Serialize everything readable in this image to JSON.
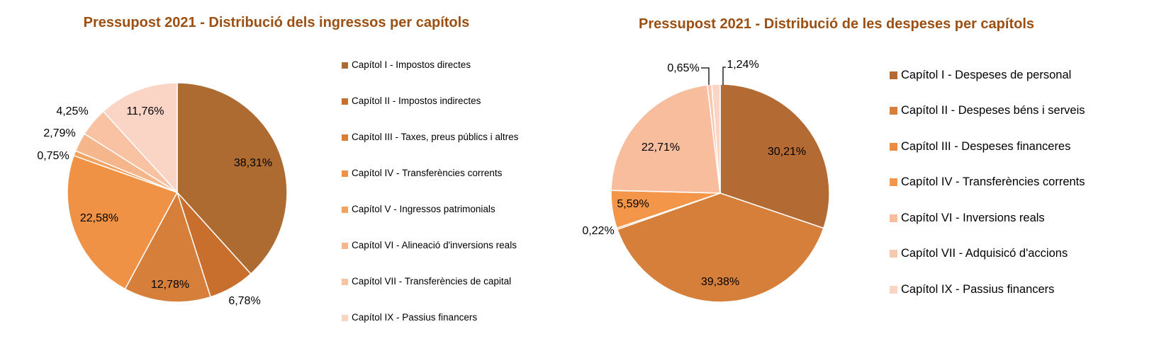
{
  "charts": {
    "income": {
      "title": "Pressupost 2021 - Distribució dels ingressos per capítols",
      "legend": [
        "Capítol I - Impostos directes",
        "Capítol II - Impostos indirectes",
        "Capítol III - Taxes, preus públics i altres",
        "Capítol IV - Transferències corrents",
        "Capítol V - Ingressos patrimonials",
        "Capítol VI - Alineació d'inversions reals",
        "Capítol VII - Transferències de capital",
        "Capítol IX - Passius financers"
      ]
    },
    "expense": {
      "title": "Pressupost 2021 - Distribució de les despeses per capítols",
      "legend": [
        "Capítol I - Despeses de personal",
        "Capítol II - Despeses béns i serveis",
        "Capítol III - Despeses financeres",
        "Capítol IV - Transferències corrents",
        "Capítol VI - Inversions reals",
        "Capítol VII - Adquisicó d'accions",
        "Capítol IX - Passius financers"
      ]
    }
  },
  "chart_data": [
    {
      "type": "pie",
      "title": "Pressupost 2021 - Distribució dels ingressos per capítols",
      "categories": [
        "Capítol I - Impostos directes",
        "Capítol II - Impostos indirectes",
        "Capítol III - Taxes, preus públics i altres",
        "Capítol IV - Transferències corrents",
        "Capítol V - Ingressos patrimonials",
        "Capítol VI - Alineació d'inversions reals",
        "Capítol VII - Transferències de capital",
        "Capítol IX - Passius financers"
      ],
      "values": [
        38.31,
        6.78,
        12.78,
        22.58,
        0.75,
        2.79,
        4.25,
        11.76
      ],
      "labels": [
        "38,31%",
        "6,78%",
        "12,78%",
        "22,58%",
        "0,75%",
        "2,79%",
        "4,25%",
        "11,76%"
      ],
      "colors": [
        "#ad6a31",
        "#c96f2e",
        "#d57f3b",
        "#ef9245",
        "#f3a261",
        "#f6b68c",
        "#f8c2a3",
        "#fad5c6"
      ],
      "legend_position": "right"
    },
    {
      "type": "pie",
      "title": "Pressupost 2021 - Distribució de les despeses per capítols",
      "categories": [
        "Capítol I - Despeses de personal",
        "Capítol II - Despeses béns i serveis",
        "Capítol III - Despeses financeres",
        "Capítol IV - Transferències corrents",
        "Capítol VI - Inversions reals",
        "Capítol VII - Adquisicó d'accions",
        "Capítol IX - Passius financers"
      ],
      "values": [
        30.21,
        39.38,
        0.22,
        5.59,
        22.71,
        0.65,
        1.24
      ],
      "labels": [
        "30,21%",
        "39,38%",
        "0,22%",
        "5,59%",
        "22,71%",
        "0,65%",
        "1,24%"
      ],
      "colors": [
        "#b36a33",
        "#d57f3b",
        "#ea8b3f",
        "#f39649",
        "#f7bd9d",
        "#f8c7b0",
        "#fad5c6"
      ],
      "legend_position": "right"
    }
  ]
}
